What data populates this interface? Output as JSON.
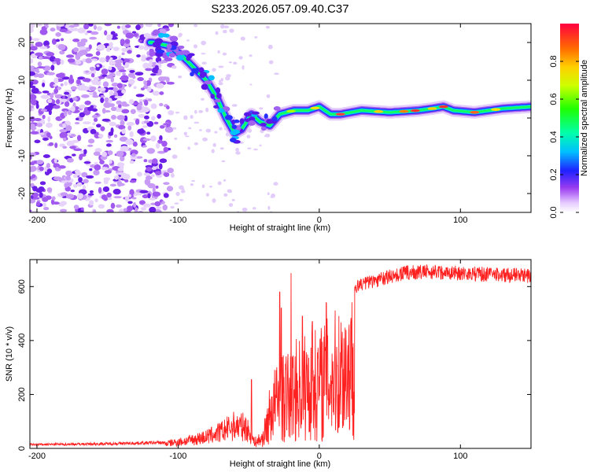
{
  "title": "S233.2026.057.09.40.C37",
  "chart_data": [
    {
      "type": "heatmap",
      "xlabel": "Height of straight line (km)",
      "ylabel": "Frequency (Hz)",
      "xlim": [
        -205,
        150
      ],
      "ylim": [
        -25,
        25
      ],
      "xticks": [
        -200,
        -100,
        0,
        100
      ],
      "yticks": [
        -20,
        -10,
        0,
        10,
        20
      ],
      "ridge": [
        {
          "x": -118,
          "y": 20
        },
        {
          "x": -105,
          "y": 19
        },
        {
          "x": -96,
          "y": 16
        },
        {
          "x": -88,
          "y": 13
        },
        {
          "x": -80,
          "y": 10
        },
        {
          "x": -72,
          "y": 5
        },
        {
          "x": -66,
          "y": 0
        },
        {
          "x": -60,
          "y": -4
        },
        {
          "x": -55,
          "y": -3
        },
        {
          "x": -48,
          "y": 1
        },
        {
          "x": -42,
          "y": -1
        },
        {
          "x": -35,
          "y": -2
        },
        {
          "x": -28,
          "y": 1
        },
        {
          "x": -18,
          "y": 2
        },
        {
          "x": -8,
          "y": 2
        },
        {
          "x": 0,
          "y": 3
        },
        {
          "x": 8,
          "y": 1
        },
        {
          "x": 15,
          "y": 1
        },
        {
          "x": 30,
          "y": 2
        },
        {
          "x": 50,
          "y": 1.5
        },
        {
          "x": 70,
          "y": 2
        },
        {
          "x": 80,
          "y": 2.5
        },
        {
          "x": 88,
          "y": 3
        },
        {
          "x": 95,
          "y": 2
        },
        {
          "x": 110,
          "y": 1.5
        },
        {
          "x": 130,
          "y": 2.5
        },
        {
          "x": 150,
          "y": 3
        }
      ],
      "colorbar": {
        "label": "Normalized spectral amplitude",
        "range": [
          0,
          1
        ],
        "ticks": [
          "0.0",
          "0.2",
          "0.4",
          "0.6",
          "0.8"
        ],
        "tick_values": [
          0,
          0.2,
          0.4,
          0.6,
          0.8
        ]
      }
    },
    {
      "type": "line",
      "xlabel": "Height of straight line (km)",
      "ylabel": "SNR (10 * v/v)",
      "xlim": [
        -205,
        150
      ],
      "ylim": [
        0,
        700
      ],
      "xticks": [
        -200,
        -100,
        0,
        100
      ],
      "yticks": [
        0,
        200,
        400,
        600
      ],
      "series": [
        {
          "name": "SNR",
          "color": "#ff2020",
          "envelope": [
            {
              "x": -205,
              "y": 18
            },
            {
              "x": -150,
              "y": 22
            },
            {
              "x": -110,
              "y": 28
            },
            {
              "x": -95,
              "y": 45
            },
            {
              "x": -80,
              "y": 70
            },
            {
              "x": -70,
              "y": 100
            },
            {
              "x": -60,
              "y": 140
            },
            {
              "x": -52,
              "y": 130
            },
            {
              "x": -46,
              "y": 40
            },
            {
              "x": -40,
              "y": 70
            },
            {
              "x": -33,
              "y": 300
            },
            {
              "x": -25,
              "y": 350
            },
            {
              "x": -15,
              "y": 420
            },
            {
              "x": -5,
              "y": 440
            },
            {
              "x": 0,
              "y": 460
            },
            {
              "x": 10,
              "y": 510
            },
            {
              "x": 20,
              "y": 570
            },
            {
              "x": 30,
              "y": 610
            },
            {
              "x": 45,
              "y": 630
            },
            {
              "x": 60,
              "y": 650
            },
            {
              "x": 80,
              "y": 655
            },
            {
              "x": 100,
              "y": 650
            },
            {
              "x": 120,
              "y": 645
            },
            {
              "x": 150,
              "y": 640
            }
          ],
          "spikes": [
            {
              "x": -48,
              "y": 255
            },
            {
              "x": -28,
              "y": 580
            },
            {
              "x": -27,
              "y": 520
            },
            {
              "x": -20,
              "y": 650
            },
            {
              "x": -12,
              "y": 490
            },
            {
              "x": -5,
              "y": 470
            },
            {
              "x": 5,
              "y": 540
            }
          ]
        }
      ]
    }
  ]
}
